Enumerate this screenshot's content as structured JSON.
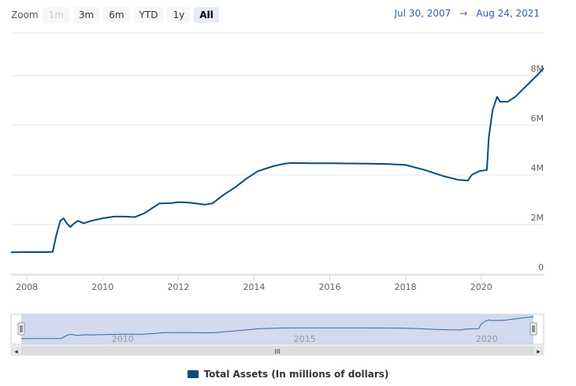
{
  "zoom": {
    "label": "Zoom",
    "buttons": [
      {
        "label": "1m",
        "state": "disabled"
      },
      {
        "label": "3m",
        "state": "normal"
      },
      {
        "label": "6m",
        "state": "normal"
      },
      {
        "label": "YTD",
        "state": "normal"
      },
      {
        "label": "1y",
        "state": "normal"
      },
      {
        "label": "All",
        "state": "active"
      }
    ]
  },
  "range": {
    "from": "Jul 30, 2007",
    "arrow": "→",
    "to": "Aug 24, 2021"
  },
  "colors": {
    "series": "#0b4a7d",
    "grid": "#e6e6e6",
    "navigator_mask": "#c6d1ea",
    "navigator_line": "#3366aa"
  },
  "chart_data": {
    "type": "line",
    "title": "",
    "xlabel": "",
    "ylabel": "",
    "x_range": [
      2007.58,
      2021.65
    ],
    "ylim": [
      0,
      8000000
    ],
    "y_ticks": [
      {
        "value": 0,
        "label": "0"
      },
      {
        "value": 2000000,
        "label": "2M"
      },
      {
        "value": 4000000,
        "label": "4M"
      },
      {
        "value": 6000000,
        "label": "6M"
      },
      {
        "value": 8000000,
        "label": "8M"
      }
    ],
    "x_ticks": [
      {
        "value": 2008,
        "label": "2008"
      },
      {
        "value": 2010,
        "label": "2010"
      },
      {
        "value": 2012,
        "label": "2012"
      },
      {
        "value": 2014,
        "label": "2014"
      },
      {
        "value": 2016,
        "label": "2016"
      },
      {
        "value": 2018,
        "label": "2018"
      },
      {
        "value": 2020,
        "label": "2020"
      }
    ],
    "grid": true,
    "legend_position": "bottom-center",
    "series": [
      {
        "name": "Total Assets (In millions of dollars)",
        "points": [
          [
            2007.58,
            880000
          ],
          [
            2008.0,
            890000
          ],
          [
            2008.5,
            890000
          ],
          [
            2008.68,
            900000
          ],
          [
            2008.78,
            1600000
          ],
          [
            2008.88,
            2150000
          ],
          [
            2008.97,
            2250000
          ],
          [
            2009.05,
            2050000
          ],
          [
            2009.15,
            1900000
          ],
          [
            2009.25,
            2050000
          ],
          [
            2009.35,
            2150000
          ],
          [
            2009.5,
            2050000
          ],
          [
            2009.7,
            2150000
          ],
          [
            2010.0,
            2250000
          ],
          [
            2010.3,
            2320000
          ],
          [
            2010.6,
            2320000
          ],
          [
            2010.85,
            2300000
          ],
          [
            2011.1,
            2450000
          ],
          [
            2011.3,
            2650000
          ],
          [
            2011.5,
            2850000
          ],
          [
            2011.8,
            2860000
          ],
          [
            2012.0,
            2900000
          ],
          [
            2012.3,
            2880000
          ],
          [
            2012.7,
            2800000
          ],
          [
            2012.9,
            2850000
          ],
          [
            2013.2,
            3200000
          ],
          [
            2013.5,
            3500000
          ],
          [
            2013.8,
            3850000
          ],
          [
            2014.1,
            4150000
          ],
          [
            2014.5,
            4350000
          ],
          [
            2014.8,
            4450000
          ],
          [
            2015.0,
            4480000
          ],
          [
            2015.5,
            4470000
          ],
          [
            2016.0,
            4470000
          ],
          [
            2016.5,
            4460000
          ],
          [
            2017.0,
            4450000
          ],
          [
            2017.5,
            4440000
          ],
          [
            2018.0,
            4400000
          ],
          [
            2018.5,
            4200000
          ],
          [
            2019.0,
            3950000
          ],
          [
            2019.4,
            3800000
          ],
          [
            2019.65,
            3770000
          ],
          [
            2019.75,
            4000000
          ],
          [
            2019.95,
            4150000
          ],
          [
            2020.15,
            4200000
          ],
          [
            2020.2,
            5500000
          ],
          [
            2020.3,
            6600000
          ],
          [
            2020.42,
            7150000
          ],
          [
            2020.5,
            6950000
          ],
          [
            2020.7,
            6950000
          ],
          [
            2020.9,
            7150000
          ],
          [
            2021.1,
            7450000
          ],
          [
            2021.3,
            7750000
          ],
          [
            2021.5,
            8050000
          ],
          [
            2021.65,
            8300000
          ]
        ]
      }
    ]
  },
  "navigator": {
    "ticks": [
      {
        "value": 2010,
        "label": "2010"
      },
      {
        "value": 2015,
        "label": "2015"
      },
      {
        "value": 2020,
        "label": "2020"
      }
    ],
    "handle_glyph": "II",
    "scroll_left_glyph": "◂",
    "scroll_right_glyph": "▸",
    "scroll_grip_glyph": "III"
  },
  "legend": {
    "label": "Total Assets (In millions of dollars)",
    "color": "#0b4a7d"
  }
}
